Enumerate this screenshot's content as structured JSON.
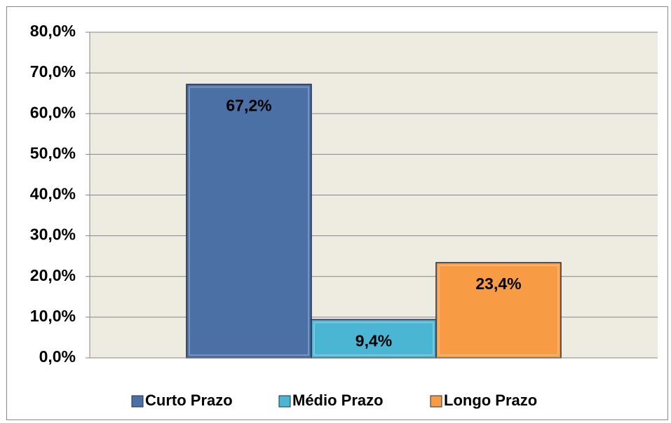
{
  "chart_data": {
    "type": "bar",
    "categories": [
      null
    ],
    "series": [
      {
        "name": "Curto Prazo",
        "color": "#4a70a6",
        "values": [
          67.2
        ],
        "value_labels": [
          "67,2%"
        ]
      },
      {
        "name": "Médio Prazo",
        "color": "#4bb6d3",
        "values": [
          9.4
        ],
        "value_labels": [
          "9,4%"
        ]
      },
      {
        "name": "Longo Prazo",
        "color": "#f79b45",
        "values": [
          23.4
        ],
        "value_labels": [
          "23,4%"
        ]
      }
    ],
    "ylim": [
      0,
      80
    ],
    "yticks": [
      {
        "value": 0,
        "label": "0,0%"
      },
      {
        "value": 10,
        "label": "10,0%"
      },
      {
        "value": 20,
        "label": "20,0%"
      },
      {
        "value": 30,
        "label": "30,0%"
      },
      {
        "value": 40,
        "label": "40,0%"
      },
      {
        "value": 50,
        "label": "50,0%"
      },
      {
        "value": 60,
        "label": "60,0%"
      },
      {
        "value": 70,
        "label": "70,0%"
      },
      {
        "value": 80,
        "label": "80,0%"
      }
    ],
    "grid": true,
    "legend": "bottom"
  }
}
